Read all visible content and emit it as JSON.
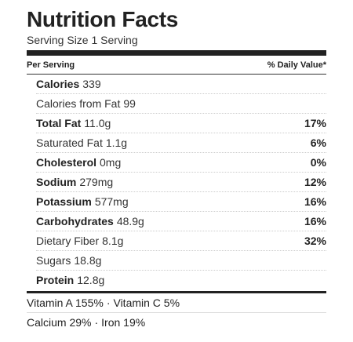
{
  "title": "Nutrition Facts",
  "serving_size": "Serving Size 1 Serving",
  "header": {
    "per_serving": "Per Serving",
    "daily_value": "% Daily Value*"
  },
  "nutrients": [
    {
      "name": "Calories",
      "amount": "339",
      "dv": "",
      "bold": true
    },
    {
      "name": "Calories from Fat",
      "amount": "99",
      "dv": "",
      "bold": false
    },
    {
      "name": "Total Fat",
      "amount": "11.0g",
      "dv": "17%",
      "bold": true
    },
    {
      "name": "Saturated Fat",
      "amount": "1.1g",
      "dv": "6%",
      "bold": false
    },
    {
      "name": "Cholesterol",
      "amount": "0mg",
      "dv": "0%",
      "bold": true
    },
    {
      "name": "Sodium",
      "amount": "279mg",
      "dv": "12%",
      "bold": true
    },
    {
      "name": "Potassium",
      "amount": "577mg",
      "dv": "16%",
      "bold": true
    },
    {
      "name": "Carbohydrates",
      "amount": "48.9g",
      "dv": "16%",
      "bold": true
    },
    {
      "name": "Dietary Fiber",
      "amount": "8.1g",
      "dv": "32%",
      "bold": false
    },
    {
      "name": "Sugars",
      "amount": "18.8g",
      "dv": "",
      "bold": false
    },
    {
      "name": "Protein",
      "amount": "12.8g",
      "dv": "",
      "bold": true
    }
  ],
  "vitamins": {
    "line1": [
      "Vitamin A 155%",
      "Vitamin C 5%"
    ],
    "line2": [
      "Calcium 29%",
      "Iron 19%"
    ],
    "separator": "·"
  }
}
